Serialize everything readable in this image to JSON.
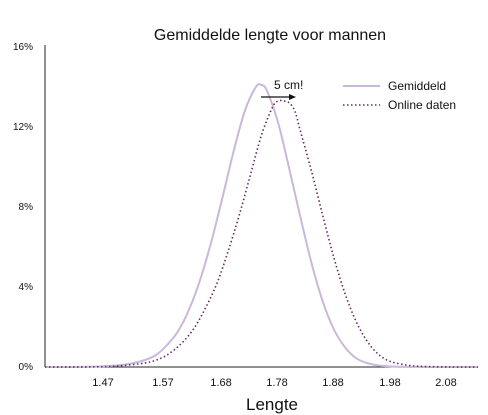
{
  "chart_data": {
    "type": "line",
    "title": "Gemiddelde lengte voor mannen",
    "xlabel": "Lengte",
    "ylabel": "",
    "xlim": [
      1.37,
      2.15
    ],
    "ylim": [
      0,
      16
    ],
    "x_ticks": [
      "1.47",
      "1.57",
      "1.68",
      "1.78",
      "1.88",
      "1.98",
      "2.08"
    ],
    "y_ticks": [
      "0%",
      "4%",
      "8%",
      "12%",
      "16%"
    ],
    "grid": false,
    "legend_position": "top-right",
    "annotation": "5 cm!",
    "series": [
      {
        "name": "Gemiddeld",
        "style": "solid",
        "color": "#c9b8db",
        "x": [
          1.37,
          1.42,
          1.47,
          1.5,
          1.53,
          1.55,
          1.57,
          1.59,
          1.61,
          1.63,
          1.65,
          1.67,
          1.69,
          1.71,
          1.73,
          1.75,
          1.76,
          1.77,
          1.79,
          1.81,
          1.83,
          1.85,
          1.87,
          1.89,
          1.91,
          1.93,
          1.95,
          1.97,
          2.0,
          2.05,
          2.1,
          2.15
        ],
        "y": [
          0.0,
          0.0,
          0.03,
          0.08,
          0.2,
          0.35,
          0.6,
          1.1,
          1.8,
          2.9,
          4.4,
          6.3,
          8.5,
          10.8,
          12.8,
          14.0,
          14.1,
          13.8,
          12.2,
          9.9,
          7.5,
          5.2,
          3.3,
          1.9,
          1.0,
          0.45,
          0.2,
          0.08,
          0.02,
          0.0,
          0.0,
          0.0
        ]
      },
      {
        "name": "Online daten",
        "style": "dotted",
        "color": "#6a2a5c",
        "x": [
          1.37,
          1.45,
          1.5,
          1.55,
          1.58,
          1.6,
          1.62,
          1.64,
          1.66,
          1.68,
          1.7,
          1.72,
          1.74,
          1.76,
          1.78,
          1.79,
          1.8,
          1.81,
          1.82,
          1.83,
          1.85,
          1.87,
          1.89,
          1.91,
          1.93,
          1.95,
          1.97,
          1.99,
          2.02,
          2.05,
          2.1,
          2.15
        ],
        "y": [
          0.0,
          0.0,
          0.05,
          0.2,
          0.45,
          0.8,
          1.3,
          2.0,
          3.0,
          4.2,
          5.8,
          7.6,
          9.6,
          11.6,
          13.0,
          13.3,
          13.3,
          13.2,
          12.8,
          11.8,
          9.8,
          7.6,
          5.5,
          3.7,
          2.3,
          1.3,
          0.65,
          0.3,
          0.1,
          0.03,
          0.0,
          0.0
        ]
      }
    ]
  }
}
